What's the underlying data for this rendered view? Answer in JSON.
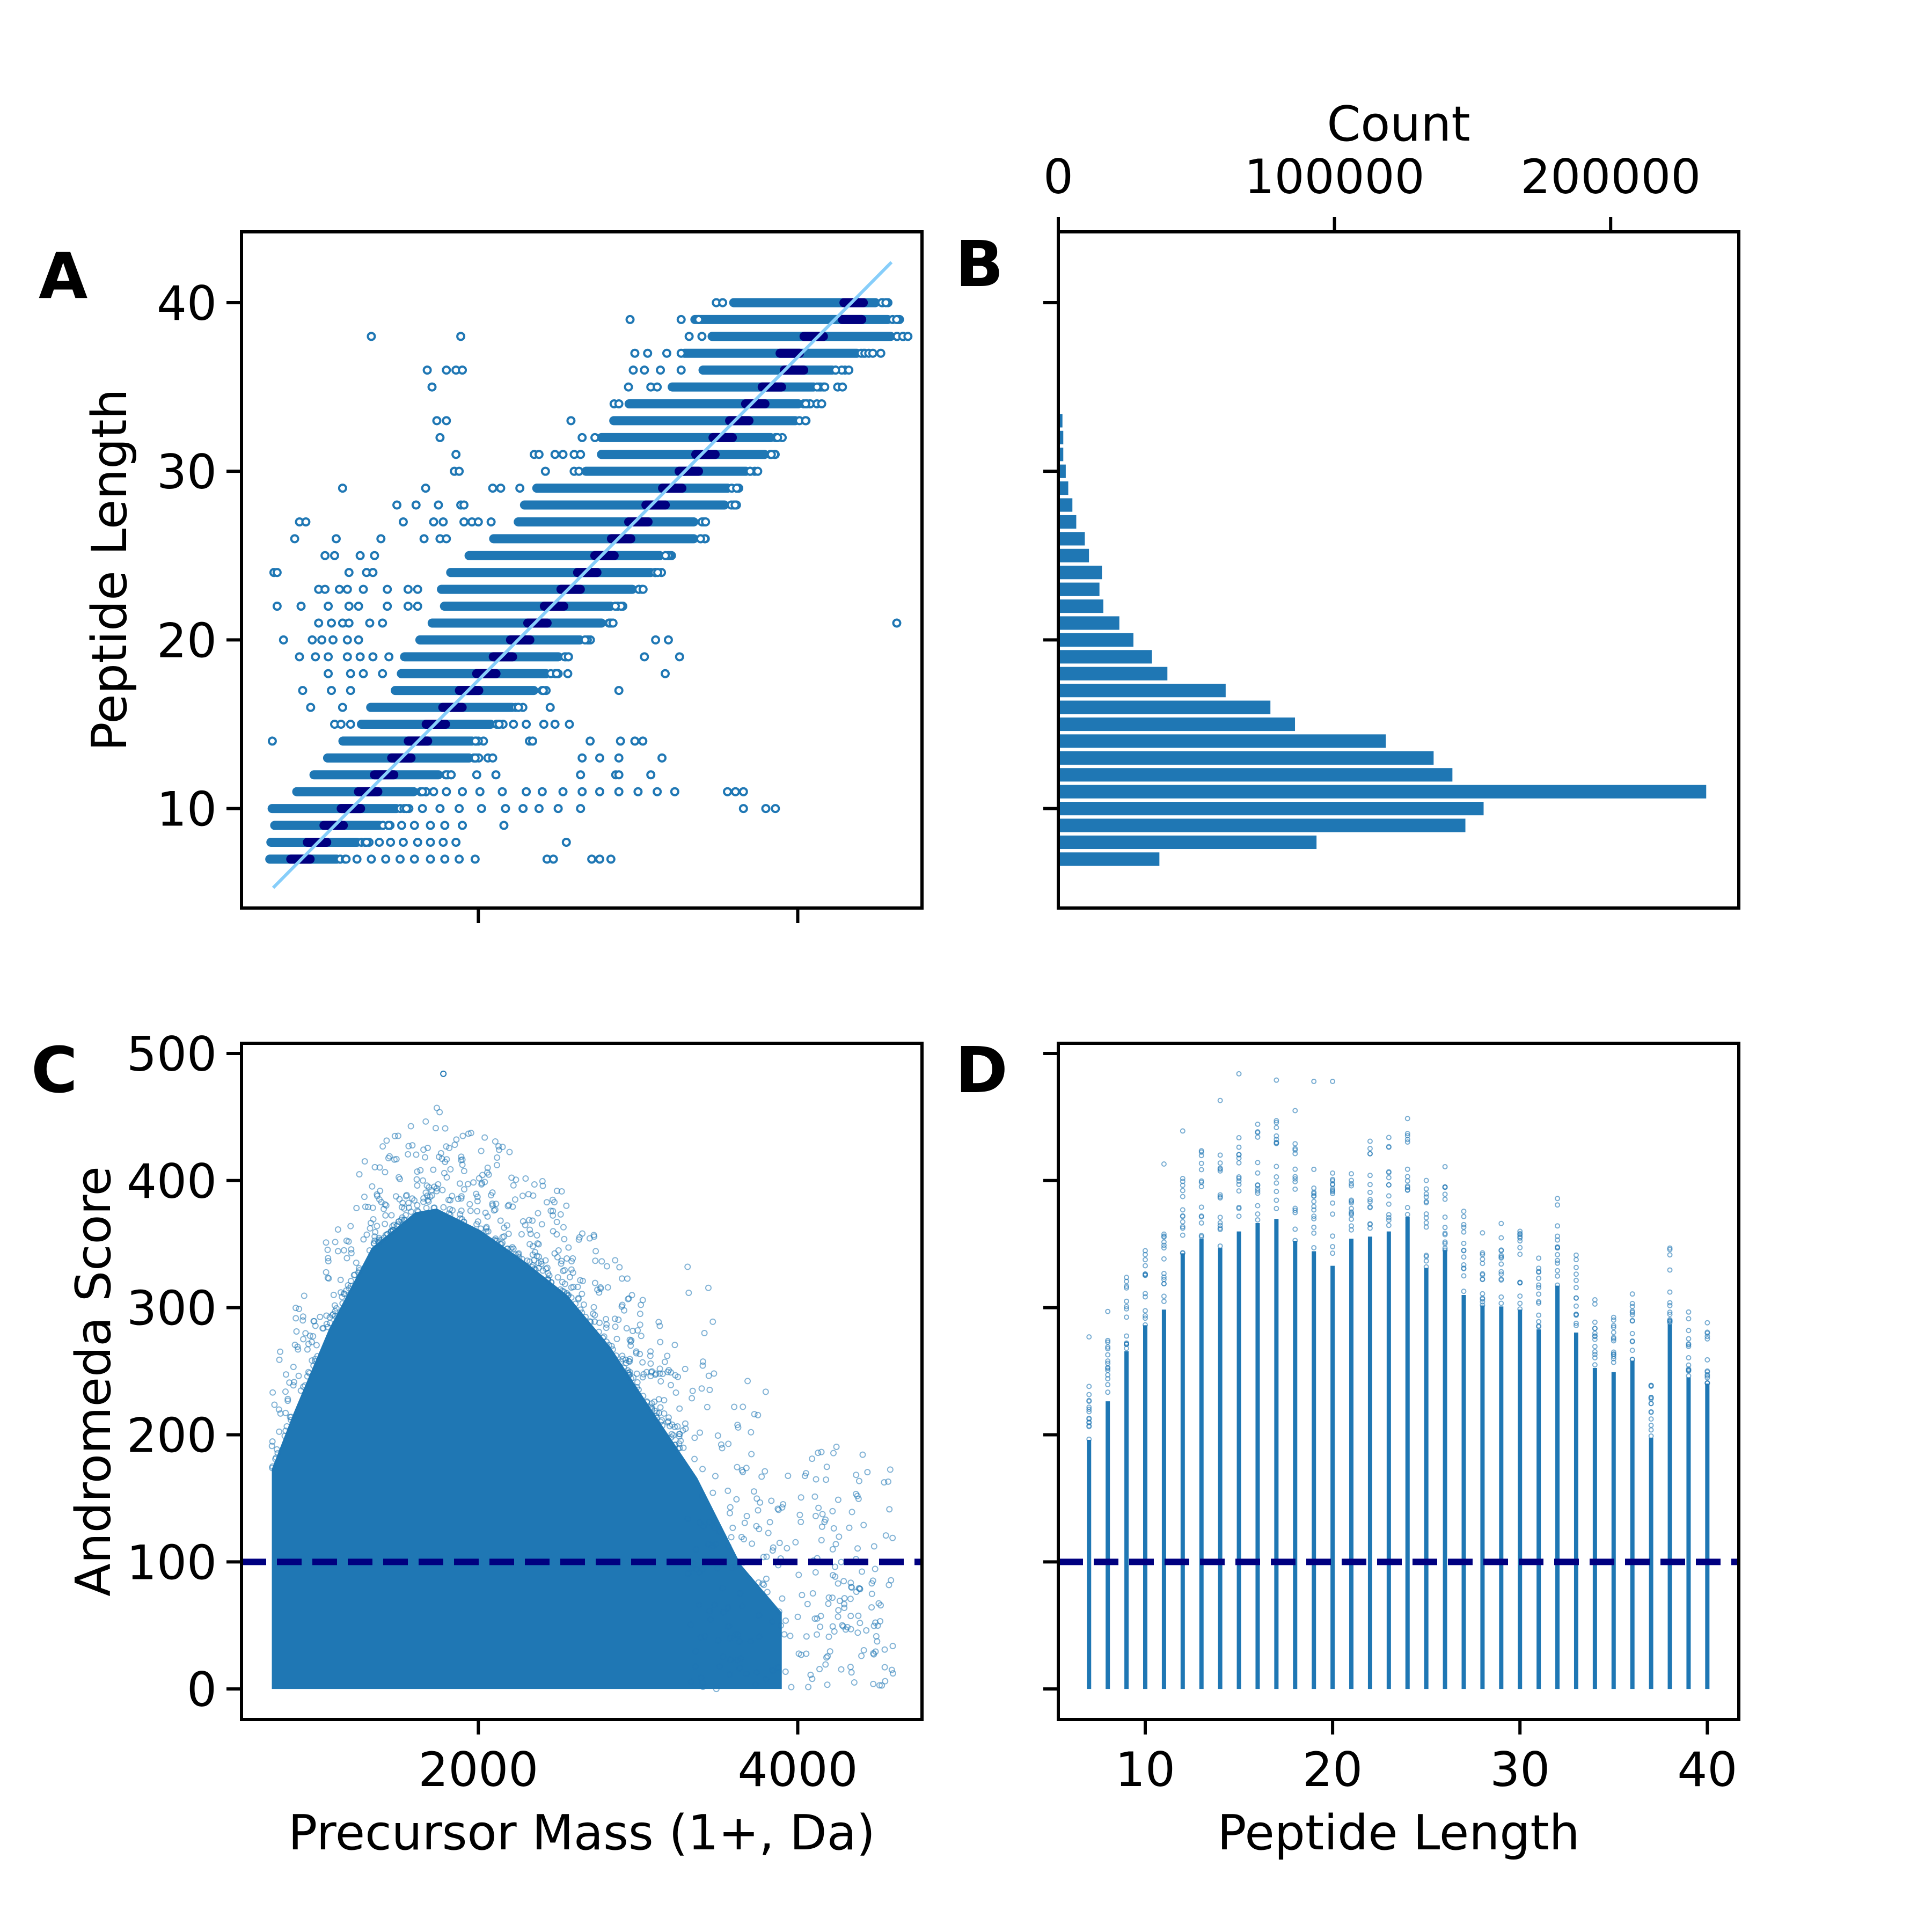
{
  "figure": {
    "colors": {
      "points": "#1f77b4",
      "median": "#000080",
      "fit_line": "#87cefa",
      "threshold": "#000080",
      "bars": "#1f77b4",
      "axes": "#000000"
    }
  },
  "chart_data": [
    {
      "panel": "A",
      "type": "scatter",
      "title": "",
      "xlabel": "",
      "ylabel": "Peptide Length",
      "xlim": [
        517,
        4778
      ],
      "ylim": [
        4.1,
        44.2
      ],
      "xticks": [
        2000,
        4000
      ],
      "xtick_labels": [
        "",
        ""
      ],
      "yticks": [
        10,
        20,
        30,
        40
      ],
      "ytick_labels": [
        "10",
        "20",
        "30",
        "40"
      ],
      "grid": false,
      "fit_line": {
        "x": [
          715,
          4587
        ],
        "y": [
          5.3,
          42.4
        ]
      },
      "rows_note": "per peptide length: dense mass band [min,max] (Da), median mass (Da), and outlier masses",
      "rows": [
        {
          "length": 7,
          "band": [
            694,
            1114
          ],
          "median": 886,
          "outliers": [
            1240,
            1330,
            1420,
            1510,
            1600,
            1700,
            1790,
            1880,
            1980,
            2430,
            2470,
            2710,
            2760,
            2830
          ]
        },
        {
          "length": 8,
          "band": [
            701,
            1241
          ],
          "median": 990,
          "outliers": [
            1300,
            1380,
            1450,
            1530,
            1620,
            1700,
            1780,
            1860,
            2551
          ]
        },
        {
          "length": 9,
          "band": [
            725,
            1380
          ],
          "median": 1094,
          "outliers": [
            1440,
            1520,
            1600,
            1700,
            1790,
            1900,
            2160
          ]
        },
        {
          "length": 10,
          "band": [
            709,
            1487
          ],
          "median": 1202,
          "outliers": [
            1550,
            1650,
            1760,
            1880,
            2020,
            2170,
            2280,
            2380,
            2500,
            2640,
            3660,
            3800,
            3860
          ]
        },
        {
          "length": 11,
          "band": [
            863,
            1595
          ],
          "median": 1310,
          "outliers": [
            1650,
            1720,
            1800,
            1900,
            2010,
            2150,
            2300,
            2400,
            2530,
            2650,
            2760,
            2880,
            3000,
            3120,
            3230,
            3560,
            3610,
            3660
          ]
        },
        {
          "length": 12,
          "band": [
            971,
            1750
          ],
          "median": 1410,
          "outliers": [
            1830,
            1990,
            2110,
            2640,
            2860,
            2880,
            3080
          ]
        },
        {
          "length": 13,
          "band": [
            1056,
            1942
          ],
          "median": 1518,
          "outliers": [
            1980,
            2060,
            2090,
            2650,
            2760,
            2880,
            3150
          ]
        },
        {
          "length": 14,
          "band": [
            1152,
            1961
          ],
          "median": 1622,
          "outliers": [
            710,
            2320,
            2340,
            2700,
            2890,
            2980,
            3030
          ]
        },
        {
          "length": 15,
          "band": [
            1268,
            2077
          ],
          "median": 1734,
          "outliers": [
            1100,
            1140,
            1200,
            2130,
            2220,
            2300,
            2410,
            2480,
            2570
          ]
        },
        {
          "length": 16,
          "band": [
            1326,
            2212
          ],
          "median": 1838,
          "outliers": [
            950,
            1150,
            2450
          ]
        },
        {
          "length": 17,
          "band": [
            1480,
            2347
          ],
          "median": 1942,
          "outliers": [
            900,
            1080,
            1200,
            2880
          ]
        },
        {
          "length": 18,
          "band": [
            1518,
            2424
          ],
          "median": 2050,
          "outliers": [
            1060,
            1200,
            1280,
            1400,
            2560,
            3170
          ]
        },
        {
          "length": 19,
          "band": [
            1538,
            2501
          ],
          "median": 2154,
          "outliers": [
            880,
            980,
            1060,
            1180,
            1260,
            1340,
            1440,
            3040,
            3260
          ]
        },
        {
          "length": 20,
          "band": [
            1634,
            2636
          ],
          "median": 2262,
          "outliers": [
            780,
            960,
            1020,
            1090,
            1180,
            1250,
            3110,
            3190
          ]
        },
        {
          "length": 21,
          "band": [
            1711,
            2771
          ],
          "median": 2370,
          "outliers": [
            1000,
            1080,
            1150,
            1190,
            1320,
            1400,
            4620
          ]
        },
        {
          "length": 22,
          "band": [
            1788,
            2829
          ],
          "median": 2474,
          "outliers": [
            740,
            890,
            1060,
            1190,
            1250,
            1430,
            1560,
            1620
          ]
        },
        {
          "length": 23,
          "band": [
            1769,
            2964
          ],
          "median": 2578,
          "outliers": [
            1000,
            1040,
            1130,
            1180,
            1280,
            1430,
            1560,
            1620
          ]
        },
        {
          "length": 24,
          "band": [
            1827,
            3079
          ],
          "median": 2682,
          "outliers": [
            720,
            740,
            1190,
            1300,
            1340
          ]
        },
        {
          "length": 25,
          "band": [
            1942,
            3137
          ],
          "median": 2790,
          "outliers": [
            1040,
            1100,
            1260,
            1350
          ]
        },
        {
          "length": 26,
          "band": [
            2096,
            3349
          ],
          "median": 2894,
          "outliers": [
            850,
            1110,
            1390,
            1660,
            1760,
            1800
          ]
        },
        {
          "length": 27,
          "band": [
            2250,
            3349
          ],
          "median": 3002,
          "outliers": [
            880,
            920,
            1530,
            1720,
            1780,
            1910,
            1960,
            2000,
            2080
          ]
        },
        {
          "length": 28,
          "band": [
            2289,
            3541
          ],
          "median": 3110,
          "outliers": [
            1490,
            1610,
            1750,
            1890,
            1910
          ]
        },
        {
          "length": 29,
          "band": [
            2366,
            3561
          ],
          "median": 3214,
          "outliers": [
            1150,
            1670,
            2090,
            2140,
            2260
          ]
        },
        {
          "length": 30,
          "band": [
            2674,
            3676
          ],
          "median": 3318,
          "outliers": [
            1850,
            1880,
            2420,
            2600,
            2630
          ]
        },
        {
          "length": 31,
          "band": [
            2771,
            3792
          ],
          "median": 3422,
          "outliers": [
            1860,
            2350,
            2380,
            2480,
            2530,
            2600,
            2640
          ]
        },
        {
          "length": 32,
          "band": [
            2771,
            3830
          ],
          "median": 3530,
          "outliers": [
            1760,
            2650,
            2730
          ]
        },
        {
          "length": 33,
          "band": [
            2848,
            3985
          ],
          "median": 3634,
          "outliers": [
            1740,
            1800,
            2580
          ]
        },
        {
          "length": 34,
          "band": [
            2944,
            4004
          ],
          "median": 3734,
          "outliers": [
            2850,
            2880,
            4050,
            4120,
            4150
          ]
        },
        {
          "length": 35,
          "band": [
            3214,
            4100
          ],
          "median": 3838,
          "outliers": [
            1710,
            2940,
            3080,
            3120,
            4120,
            4250,
            4280
          ]
        },
        {
          "length": 36,
          "band": [
            3407,
            4216
          ],
          "median": 3977,
          "outliers": [
            1680,
            1800,
            1860,
            1900,
            2970,
            3040,
            3140,
            3270,
            4320
          ]
        },
        {
          "length": 37,
          "band": [
            3291,
            4370
          ],
          "median": 3950,
          "outliers": [
            2980,
            3060,
            3180,
            3270,
            4470,
            4520
          ]
        },
        {
          "length": 38,
          "band": [
            3464,
            4582
          ],
          "median": 4100,
          "outliers": [
            1330,
            1890,
            3320,
            3400,
            4690
          ]
        },
        {
          "length": 39,
          "band": [
            3356,
            4563
          ],
          "median": 4340,
          "outliers": [
            2950,
            3270,
            3380
          ]
        },
        {
          "length": 40,
          "band": [
            3599,
            4486
          ],
          "median": 4350,
          "outliers": [
            3490,
            3530
          ]
        }
      ]
    },
    {
      "panel": "B",
      "type": "bar",
      "orientation": "horizontal",
      "title": "",
      "xlabel": "Count",
      "ylabel": "",
      "xaxis_position": "top",
      "xlim": [
        0,
        246400
      ],
      "ylim": [
        4.1,
        44.2
      ],
      "xticks": [
        0,
        100000,
        200000
      ],
      "xtick_labels": [
        "0",
        "100000",
        "200000"
      ],
      "yticks": [
        10,
        20,
        30,
        40
      ],
      "ytick_labels": [
        "",
        "",
        "",
        ""
      ],
      "grid": false,
      "categories": [
        7,
        8,
        9,
        10,
        11,
        12,
        13,
        14,
        15,
        16,
        17,
        18,
        19,
        20,
        21,
        22,
        23,
        24,
        25,
        26,
        27,
        28,
        29,
        30,
        31,
        32,
        33,
        34,
        35,
        36,
        37,
        38,
        39,
        40
      ],
      "values": [
        36600,
        93500,
        147400,
        154000,
        234600,
        142700,
        135900,
        118600,
        85700,
        76800,
        60600,
        39500,
        33900,
        27200,
        22100,
        16300,
        14900,
        15800,
        11100,
        9600,
        6500,
        5100,
        3600,
        2700,
        1800,
        1800,
        1500,
        400,
        300,
        200,
        150,
        100,
        80,
        60
      ]
    },
    {
      "panel": "C",
      "type": "scatter",
      "title": "",
      "xlabel": "Precursor Mass (1+, Da)",
      "ylabel": "Andromeda Score",
      "xlim": [
        517,
        4778
      ],
      "ylim": [
        -24,
        508
      ],
      "xticks": [
        2000,
        4000
      ],
      "xtick_labels": [
        "2000",
        "4000"
      ],
      "yticks": [
        0,
        100,
        200,
        300,
        400,
        500
      ],
      "ytick_labels": [
        "0",
        "100",
        "200",
        "300",
        "400",
        "500"
      ],
      "grid": false,
      "threshold": {
        "y": 100,
        "style": "dashed"
      },
      "upper_envelope_note": "approximate upper edge of the dense point cloud (mass Da, score)",
      "upper_envelope": [
        [
          707,
          173
        ],
        [
          843,
          217
        ],
        [
          1061,
          282
        ],
        [
          1332,
          347
        ],
        [
          1604,
          375
        ],
        [
          1740,
          378
        ],
        [
          2012,
          361
        ],
        [
          2284,
          337
        ],
        [
          2556,
          310
        ],
        [
          2827,
          269
        ],
        [
          3099,
          217
        ],
        [
          3371,
          166
        ],
        [
          3643,
          98
        ],
        [
          3900,
          60
        ]
      ],
      "sparse_mass_range": [
        3300,
        4600
      ],
      "max_point": {
        "mass": 1781,
        "score": 484
      }
    },
    {
      "panel": "D",
      "type": "scatter",
      "title": "",
      "xlabel": "Peptide Length",
      "ylabel": "",
      "xlim": [
        5.36,
        41.68
      ],
      "ylim": [
        -24,
        508
      ],
      "xticks": [
        10,
        20,
        30,
        40
      ],
      "xtick_labels": [
        "10",
        "20",
        "30",
        "40"
      ],
      "yticks": [
        0,
        100,
        200,
        300,
        400,
        500
      ],
      "ytick_labels": [
        "",
        "",
        "",
        "",
        "",
        ""
      ],
      "grid": false,
      "threshold": {
        "y": 100,
        "style": "dashed"
      },
      "columns_note": "per peptide length: score range of dense column [min, dense_top] and max outlier score",
      "columns": [
        {
          "length": 7,
          "dense_top": 239,
          "max": 277
        },
        {
          "length": 8,
          "dense_top": 276,
          "max": 297
        },
        {
          "length": 9,
          "dense_top": 324,
          "max": 324
        },
        {
          "length": 10,
          "dense_top": 349,
          "max": 349
        },
        {
          "length": 11,
          "dense_top": 364,
          "max": 413
        },
        {
          "length": 12,
          "dense_top": 418,
          "max": 439
        },
        {
          "length": 13,
          "dense_top": 432,
          "max": 432
        },
        {
          "length": 14,
          "dense_top": 423,
          "max": 463
        },
        {
          "length": 15,
          "dense_top": 439,
          "max": 484
        },
        {
          "length": 16,
          "dense_top": 447,
          "max": 447
        },
        {
          "length": 17,
          "dense_top": 451,
          "max": 479
        },
        {
          "length": 18,
          "dense_top": 430,
          "max": 455
        },
        {
          "length": 19,
          "dense_top": 420,
          "max": 478
        },
        {
          "length": 20,
          "dense_top": 406,
          "max": 478
        },
        {
          "length": 21,
          "dense_top": 432,
          "max": 432
        },
        {
          "length": 22,
          "dense_top": 434,
          "max": 434
        },
        {
          "length": 23,
          "dense_top": 439,
          "max": 439
        },
        {
          "length": 24,
          "dense_top": 453,
          "max": 453
        },
        {
          "length": 25,
          "dense_top": 404,
          "max": 404
        },
        {
          "length": 26,
          "dense_top": 421,
          "max": 421
        },
        {
          "length": 27,
          "dense_top": 378,
          "max": 378
        },
        {
          "length": 28,
          "dense_top": 368,
          "max": 368
        },
        {
          "length": 29,
          "dense_top": 367,
          "max": 367
        },
        {
          "length": 30,
          "dense_top": 364,
          "max": 364
        },
        {
          "length": 31,
          "dense_top": 345,
          "max": 345
        },
        {
          "length": 32,
          "dense_top": 387,
          "max": 387
        },
        {
          "length": 33,
          "dense_top": 342,
          "max": 342
        },
        {
          "length": 34,
          "dense_top": 308,
          "max": 308
        },
        {
          "length": 35,
          "dense_top": 304,
          "max": 304
        },
        {
          "length": 36,
          "dense_top": 315,
          "max": 315
        },
        {
          "length": 37,
          "dense_top": 241,
          "max": 241
        },
        {
          "length": 38,
          "dense_top": 350,
          "max": 350
        },
        {
          "length": 39,
          "dense_top": 299,
          "max": 299
        },
        {
          "length": 40,
          "dense_top": 293,
          "max": 293
        }
      ]
    }
  ],
  "panel_letters": [
    "A",
    "B",
    "C",
    "D"
  ]
}
